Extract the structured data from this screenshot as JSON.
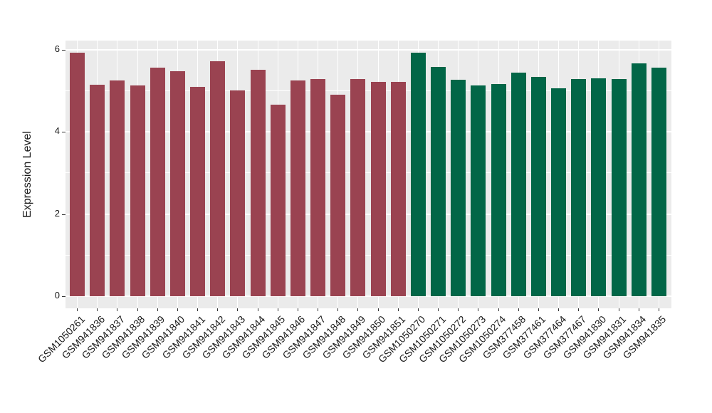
{
  "figure": {
    "background": "#FFFFFF",
    "panel_background": "#EBEBEB",
    "gridline_color": "#FFFFFF",
    "axis_text_color": "#1A1A1A",
    "tick_mark_color": "#333333"
  },
  "chart_data": {
    "type": "bar",
    "title": "",
    "xlabel": "",
    "ylabel": "Expression Level",
    "ylim": [
      0,
      6.2
    ],
    "y_major_ticks": [
      0,
      2,
      4,
      6
    ],
    "y_minor_ticks": [
      1,
      3,
      5
    ],
    "grid": "white major/minor horizontal lines and vertical line at each category on gray panel",
    "legend": "none",
    "x_tick_label_angle": 45,
    "categories": [
      "GSM1050261",
      "GSM941836",
      "GSM941837",
      "GSM941838",
      "GSM941839",
      "GSM941840",
      "GSM941841",
      "GSM941842",
      "GSM941843",
      "GSM941844",
      "GSM941845",
      "GSM941846",
      "GSM941847",
      "GSM941848",
      "GSM941849",
      "GSM941850",
      "GSM941851",
      "GSM1050270",
      "GSM1050271",
      "GSM1050272",
      "GSM1050273",
      "GSM1050274",
      "GSM377458",
      "GSM377461",
      "GSM377464",
      "GSM377467",
      "GSM941830",
      "GSM941831",
      "GSM941834",
      "GSM941835"
    ],
    "values": [
      5.92,
      5.15,
      5.25,
      5.13,
      5.57,
      5.48,
      5.09,
      5.72,
      5.01,
      5.51,
      4.66,
      5.25,
      5.28,
      4.91,
      5.29,
      5.22,
      5.22,
      5.93,
      5.58,
      5.27,
      5.13,
      5.16,
      5.45,
      5.33,
      5.06,
      5.29,
      5.31,
      5.29,
      5.67,
      5.57
    ],
    "color_groups": [
      {
        "name": "group-1",
        "color": "#9A4351",
        "from_index": 0,
        "to_index": 16
      },
      {
        "name": "group-2",
        "color": "#026647",
        "from_index": 17,
        "to_index": 29
      }
    ]
  }
}
